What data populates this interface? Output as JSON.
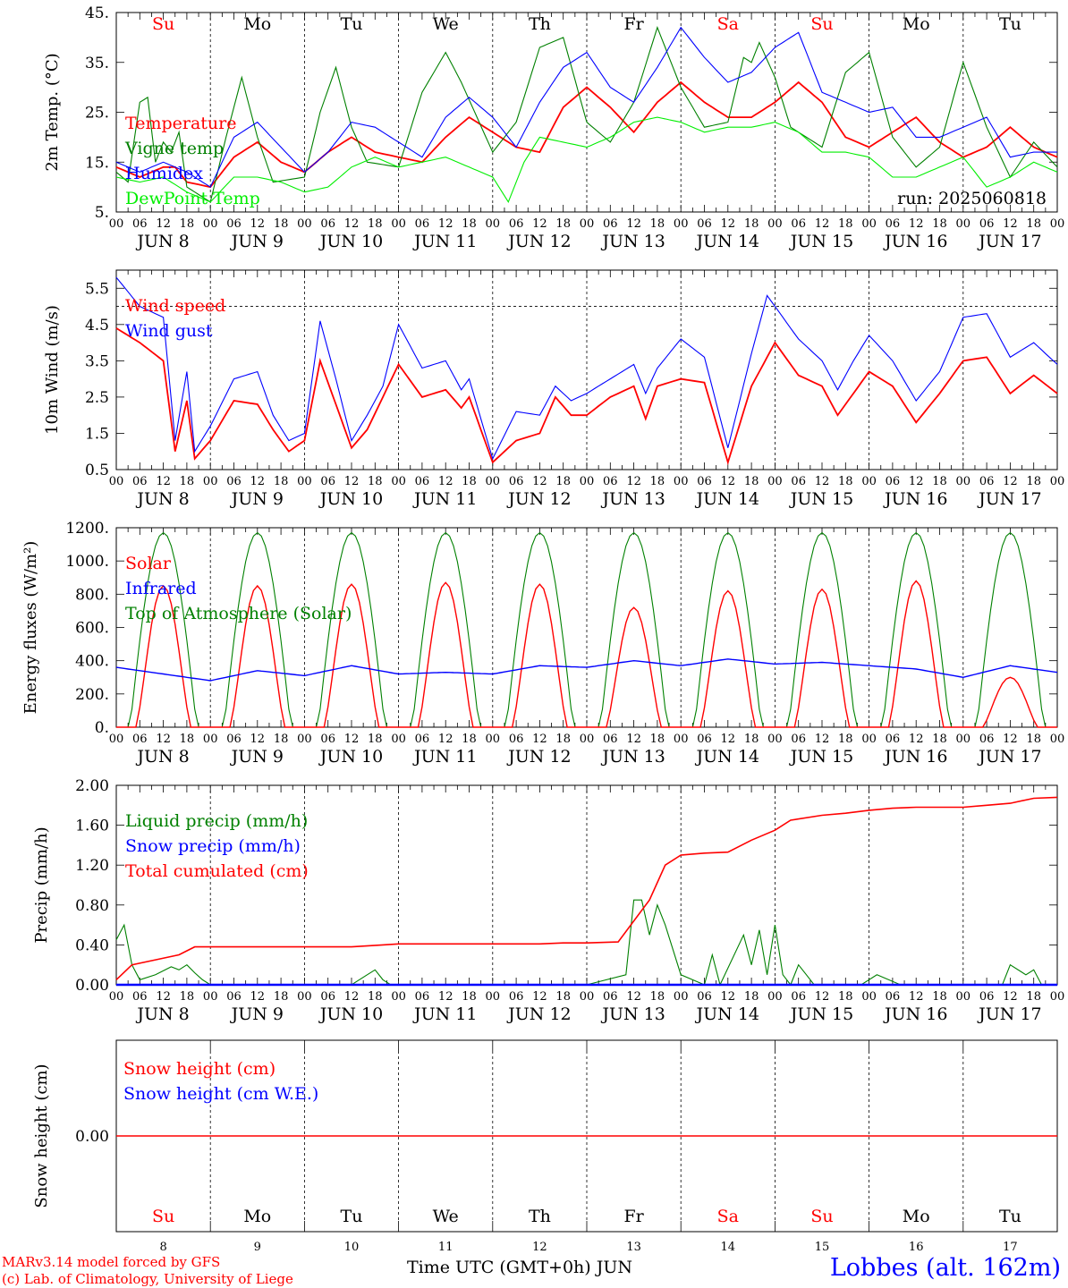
{
  "days": [
    "Su",
    "Mo",
    "Tu",
    "We",
    "Th",
    "Fr",
    "Sa",
    "Su",
    "Mo",
    "Tu"
  ],
  "weekend_days": [
    0,
    6,
    7
  ],
  "date_labels": [
    "JUN  8",
    "JUN  9",
    "JUN 10",
    "JUN 11",
    "JUN 12",
    "JUN 13",
    "JUN 14",
    "JUN 15",
    "JUN 16",
    "JUN 17"
  ],
  "day_numbers": [
    "8",
    "9",
    "10",
    "11",
    "12",
    "13",
    "14",
    "15",
    "16",
    "17"
  ],
  "hour_labels": [
    "00",
    "06",
    "12",
    "18"
  ],
  "run_label": "run: 2025060818",
  "x_axis_title": "Time UTC (GMT+0h) JUN",
  "credit_line1": "MARv3.14 model forced by GFS",
  "credit_line2": "(c) Lab. of Climatology, University of Liege",
  "station": "Lobbes (alt. 162m)",
  "colors": {
    "red": "#ff0000",
    "green": "#008000",
    "blue": "#0000ff",
    "lightgreen": "#00ee00"
  },
  "chart_data": [
    {
      "type": "line",
      "ylabel": "2m Temp. (°C)",
      "ylim": [
        5,
        45
      ],
      "yticks": [
        "5.",
        "15.",
        "25.",
        "35.",
        "45."
      ],
      "x_unit": "hours since 2025-06-08 00 UTC",
      "series": [
        {
          "name": "Temperature",
          "color": "#ff0000",
          "x": [
            0,
            6,
            9,
            12,
            15,
            18,
            24,
            30,
            36,
            42,
            48,
            54,
            60,
            66,
            72,
            78,
            84,
            90,
            96,
            102,
            108,
            114,
            120,
            126,
            132,
            138,
            144,
            150,
            156,
            162,
            168,
            174,
            180,
            186,
            192,
            198,
            204,
            210,
            216,
            222,
            228,
            234,
            240
          ],
          "y": [
            14,
            12,
            13,
            14,
            14,
            11,
            10,
            16,
            19,
            15,
            13,
            17,
            20,
            17,
            16,
            15,
            20,
            24,
            21,
            18,
            17,
            26,
            30,
            26,
            21,
            27,
            31,
            27,
            24,
            24,
            27,
            31,
            27,
            20,
            18,
            21,
            24,
            19,
            16,
            18,
            22,
            18,
            16
          ]
        },
        {
          "name": "Vigne temp",
          "color": "#008000",
          "x": [
            0,
            3,
            6,
            8,
            10,
            12,
            14,
            16,
            18,
            24,
            28,
            32,
            36,
            40,
            48,
            52,
            56,
            60,
            64,
            72,
            78,
            84,
            88,
            96,
            102,
            108,
            114,
            120,
            126,
            132,
            138,
            144,
            150,
            156,
            160,
            162,
            164,
            168,
            172,
            180,
            186,
            192,
            198,
            204,
            210,
            216,
            222,
            228,
            234,
            240
          ],
          "y": [
            13,
            11,
            27,
            28,
            15,
            19,
            17,
            21,
            10,
            7,
            20,
            32,
            20,
            11,
            12,
            25,
            34,
            22,
            15,
            14,
            29,
            37,
            31,
            17,
            23,
            38,
            40,
            23,
            19,
            27,
            42,
            30,
            22,
            23,
            36,
            35,
            39,
            32,
            22,
            18,
            33,
            37,
            20,
            14,
            18,
            35,
            22,
            12,
            19,
            14
          ]
        },
        {
          "name": "Humidex",
          "color": "#0000ff",
          "x": [
            0,
            6,
            12,
            18,
            24,
            30,
            36,
            42,
            48,
            54,
            60,
            66,
            72,
            78,
            84,
            90,
            96,
            102,
            108,
            114,
            120,
            126,
            132,
            138,
            144,
            150,
            156,
            162,
            168,
            174,
            180,
            186,
            192,
            198,
            204,
            210,
            216,
            222,
            228,
            234,
            240
          ],
          "y": [
            15,
            13,
            15,
            13,
            10,
            20,
            23,
            18,
            13,
            17,
            23,
            22,
            19,
            16,
            24,
            28,
            24,
            18,
            27,
            34,
            37,
            30,
            27,
            34,
            42,
            36,
            31,
            33,
            38,
            41,
            29,
            27,
            25,
            26,
            20,
            20,
            22,
            24,
            16,
            17,
            17
          ]
        },
        {
          "name": "DewPoint Temp",
          "color": "#00ee00",
          "x": [
            0,
            6,
            12,
            18,
            24,
            30,
            36,
            42,
            48,
            54,
            60,
            66,
            72,
            78,
            84,
            90,
            96,
            100,
            104,
            108,
            114,
            120,
            126,
            132,
            138,
            144,
            150,
            156,
            162,
            168,
            174,
            180,
            186,
            192,
            198,
            204,
            210,
            216,
            222,
            228,
            234,
            240
          ],
          "y": [
            12,
            11,
            12,
            9,
            7,
            12,
            12,
            11,
            9,
            10,
            14,
            16,
            14,
            15,
            16,
            14,
            12,
            7,
            15,
            20,
            19,
            18,
            20,
            23,
            24,
            23,
            21,
            22,
            22,
            23,
            21,
            17,
            17,
            16,
            12,
            12,
            14,
            16,
            10,
            12,
            15,
            13
          ]
        }
      ]
    },
    {
      "type": "line",
      "ylabel": "10m Wind (m/s)",
      "ylim": [
        0.5,
        6.0
      ],
      "yticks": [
        "0.5",
        "1.5",
        "2.5",
        "3.5",
        "4.5",
        "5.5"
      ],
      "reference_line": 5.0,
      "series": [
        {
          "name": "Wind speed",
          "color": "#ff0000",
          "x": [
            0,
            6,
            12,
            15,
            18,
            20,
            24,
            30,
            36,
            40,
            44,
            48,
            52,
            56,
            60,
            64,
            68,
            72,
            78,
            84,
            88,
            90,
            96,
            102,
            108,
            112,
            116,
            120,
            126,
            132,
            135,
            138,
            144,
            150,
            156,
            162,
            168,
            174,
            180,
            184,
            188,
            192,
            198,
            204,
            210,
            216,
            222,
            228,
            234,
            240
          ],
          "y": [
            4.4,
            4.0,
            3.5,
            1.0,
            2.4,
            0.8,
            1.3,
            2.4,
            2.3,
            1.6,
            1.0,
            1.3,
            3.5,
            2.3,
            1.1,
            1.6,
            2.5,
            3.4,
            2.5,
            2.7,
            2.2,
            2.5,
            0.7,
            1.3,
            1.5,
            2.5,
            2.0,
            2.0,
            2.5,
            2.8,
            1.9,
            2.8,
            3.0,
            2.9,
            0.7,
            2.8,
            4.0,
            3.1,
            2.8,
            2.0,
            2.6,
            3.2,
            2.8,
            1.8,
            2.6,
            3.5,
            3.6,
            2.6,
            3.1,
            2.6
          ]
        },
        {
          "name": "Wind gust",
          "color": "#0000ff",
          "x": [
            0,
            6,
            12,
            15,
            18,
            20,
            24,
            30,
            36,
            40,
            44,
            48,
            52,
            56,
            60,
            64,
            68,
            72,
            78,
            84,
            88,
            90,
            96,
            102,
            108,
            112,
            116,
            120,
            126,
            132,
            135,
            138,
            144,
            150,
            156,
            162,
            166,
            168,
            174,
            180,
            184,
            188,
            192,
            198,
            204,
            210,
            216,
            222,
            228,
            234,
            240
          ],
          "y": [
            5.8,
            5.0,
            4.7,
            1.3,
            3.2,
            1.0,
            1.7,
            3.0,
            3.2,
            2.0,
            1.3,
            1.5,
            4.6,
            3.0,
            1.3,
            2.0,
            2.8,
            4.5,
            3.3,
            3.5,
            2.7,
            3.0,
            0.8,
            2.1,
            2.0,
            2.8,
            2.4,
            2.6,
            3.0,
            3.4,
            2.6,
            3.3,
            4.1,
            3.6,
            1.1,
            3.7,
            5.3,
            5.0,
            4.1,
            3.5,
            2.7,
            3.5,
            4.2,
            3.5,
            2.4,
            3.2,
            4.7,
            4.8,
            3.6,
            4.0,
            3.4
          ]
        }
      ]
    },
    {
      "type": "line",
      "ylabel": "Energy fluxes (W/m²)",
      "ylim": [
        0,
        1200
      ],
      "yticks": [
        "0.",
        "200.",
        "400.",
        "600.",
        "800.",
        "1000.",
        "1200."
      ],
      "series": [
        {
          "name": "Solar",
          "color": "#ff0000",
          "peaks": [
            850,
            850,
            860,
            870,
            860,
            720,
            820,
            830,
            880,
            300
          ]
        },
        {
          "name": "Infrared",
          "color": "#0000ff",
          "x": [
            0,
            12,
            24,
            36,
            48,
            60,
            72,
            84,
            96,
            108,
            120,
            132,
            144,
            156,
            168,
            180,
            192,
            204,
            216,
            228,
            240
          ],
          "y": [
            360,
            320,
            280,
            340,
            310,
            370,
            320,
            330,
            320,
            370,
            360,
            400,
            370,
            410,
            380,
            390,
            370,
            350,
            300,
            370,
            330
          ]
        },
        {
          "name": "Top of Atmosphere (Solar)",
          "color": "#008000",
          "peak": 1170
        }
      ]
    },
    {
      "type": "line",
      "ylabel": "Precip (mm/h)",
      "ylim": [
        0,
        2.0
      ],
      "yticks": [
        "0.00",
        "0.40",
        "0.80",
        "1.20",
        "1.60",
        "2.00"
      ],
      "series": [
        {
          "name": "Liquid precip (mm/h)",
          "color": "#008000",
          "x": [
            0,
            2,
            4,
            6,
            10,
            14,
            16,
            18,
            20,
            22,
            24,
            60,
            64,
            66,
            68,
            70,
            120,
            130,
            132,
            134,
            136,
            138,
            140,
            144,
            150,
            152,
            154,
            160,
            162,
            164,
            166,
            168,
            170,
            172,
            174,
            176,
            178,
            190,
            194,
            200,
            226,
            228,
            232,
            234,
            236,
            240
          ],
          "y": [
            0.45,
            0.6,
            0.2,
            0.05,
            0.1,
            0.18,
            0.15,
            0.2,
            0.12,
            0.05,
            0.0,
            0.0,
            0.1,
            0.15,
            0.05,
            0.0,
            0.0,
            0.1,
            0.85,
            0.85,
            0.5,
            0.8,
            0.6,
            0.1,
            0.0,
            0.3,
            0.0,
            0.5,
            0.2,
            0.55,
            0.1,
            0.6,
            0.1,
            0.0,
            0.2,
            0.1,
            0.0,
            0.0,
            0.1,
            0.0,
            0.0,
            0.2,
            0.1,
            0.15,
            0.0,
            0.0
          ]
        },
        {
          "name": "Snow precip (mm/h)",
          "color": "#0000ff",
          "value": 0.0
        },
        {
          "name": "Total cumulated (cm)",
          "color": "#ff0000",
          "x": [
            0,
            4,
            10,
            16,
            20,
            24,
            60,
            68,
            72,
            108,
            114,
            120,
            128,
            136,
            140,
            144,
            150,
            156,
            162,
            168,
            172,
            180,
            186,
            192,
            198,
            204,
            216,
            222,
            228,
            234,
            240
          ],
          "y": [
            0.05,
            0.2,
            0.25,
            0.3,
            0.38,
            0.38,
            0.38,
            0.4,
            0.41,
            0.41,
            0.42,
            0.42,
            0.43,
            0.85,
            1.2,
            1.3,
            1.32,
            1.33,
            1.45,
            1.55,
            1.65,
            1.7,
            1.72,
            1.75,
            1.77,
            1.78,
            1.78,
            1.8,
            1.82,
            1.87,
            1.88
          ]
        }
      ]
    },
    {
      "type": "line",
      "ylabel": "Snow height (cm)",
      "yticks": [
        "0.00"
      ],
      "series": [
        {
          "name": "Snow height (cm)",
          "color": "#ff0000",
          "value": 0.0
        },
        {
          "name": "Snow height (cm W.E.)",
          "color": "#0000ff",
          "value": 0.0
        }
      ]
    }
  ]
}
